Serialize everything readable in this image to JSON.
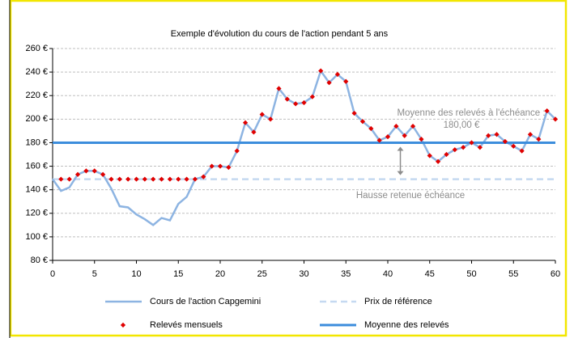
{
  "chart_data": {
    "type": "line",
    "title": "Exemple d'évolution du cours de l'action pendant 5 ans",
    "x": [
      0,
      1,
      2,
      3,
      4,
      5,
      6,
      7,
      8,
      9,
      10,
      11,
      12,
      13,
      14,
      15,
      16,
      17,
      18,
      19,
      20,
      21,
      22,
      23,
      24,
      25,
      26,
      27,
      28,
      29,
      30,
      31,
      32,
      33,
      34,
      35,
      36,
      37,
      38,
      39,
      40,
      41,
      42,
      43,
      44,
      45,
      46,
      47,
      48,
      49,
      50,
      51,
      52,
      53,
      54,
      55,
      56,
      57,
      58,
      59,
      60
    ],
    "series": [
      {
        "name": "Cours de l'action Capgemini",
        "color": "#8db4e2",
        "style": "line",
        "values": [
          149,
          139,
          142,
          153,
          156,
          156,
          153,
          141,
          126,
          125,
          119,
          115,
          110,
          116,
          114,
          128,
          134,
          149,
          151,
          160,
          160,
          159,
          173,
          197,
          189,
          204,
          200,
          226,
          217,
          213,
          214,
          219,
          241,
          231,
          238,
          232,
          205,
          198,
          192,
          182,
          185,
          194,
          186,
          194,
          183,
          169,
          164,
          170,
          174,
          176,
          180,
          176,
          186,
          187,
          181,
          177,
          173,
          187,
          183,
          207,
          200
        ]
      },
      {
        "name": "Prix de référence",
        "color": "#c5d9f1",
        "style": "dashed",
        "value": 149
      },
      {
        "name": "Relevés mensuels",
        "color": "#e00000",
        "style": "markers",
        "values": [
          null,
          149,
          149,
          153,
          156,
          156,
          153,
          149,
          149,
          149,
          149,
          149,
          149,
          149,
          149,
          149,
          149,
          149,
          151,
          160,
          160,
          159,
          173,
          197,
          189,
          204,
          200,
          226,
          217,
          213,
          214,
          219,
          241,
          231,
          238,
          232,
          205,
          198,
          192,
          182,
          185,
          194,
          186,
          194,
          183,
          169,
          164,
          170,
          174,
          176,
          180,
          176,
          186,
          187,
          181,
          177,
          173,
          187,
          183,
          207,
          200
        ]
      },
      {
        "name": "Moyenne des relevés",
        "color": "#3c8ddc",
        "style": "solid",
        "value": 180
      }
    ],
    "xlim": [
      0,
      60
    ],
    "xticks": [
      0,
      5,
      10,
      15,
      20,
      25,
      30,
      35,
      40,
      45,
      50,
      55,
      60
    ],
    "ylim": [
      80,
      260
    ],
    "yticks": [
      {
        "value": 80,
        "label": "80 €"
      },
      {
        "value": 100,
        "label": "100 €"
      },
      {
        "value": 120,
        "label": "120 €"
      },
      {
        "value": 140,
        "label": "140 €"
      },
      {
        "value": 160,
        "label": "160 €"
      },
      {
        "value": 180,
        "label": "180 €"
      },
      {
        "value": 200,
        "label": "200 €"
      },
      {
        "value": 220,
        "label": "220 €"
      },
      {
        "value": 240,
        "label": "240 €"
      },
      {
        "value": 260,
        "label": "260 €"
      }
    ],
    "grid": true,
    "annotations": [
      "Moyenne des relevés à l'échéance :",
      "180,00 €",
      "Hausse retenue échéance"
    ],
    "arrow_x": 41.5
  }
}
